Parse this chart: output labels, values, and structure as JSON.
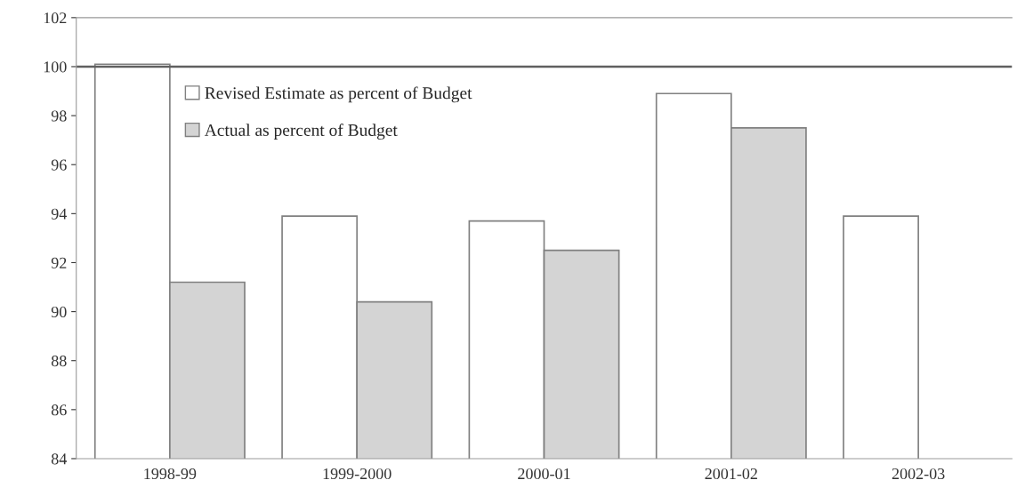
{
  "chart_data": {
    "type": "bar",
    "categories": [
      "1998-99",
      "1999-2000",
      "2000-01",
      "2001-02",
      "2002-03"
    ],
    "series": [
      {
        "name": "Revised Estimate as percent of Budget",
        "color": "#ffffff",
        "values": [
          100.1,
          93.9,
          93.7,
          98.9,
          93.9
        ]
      },
      {
        "name": "Actual as percent of Budget",
        "color": "#d4d4d4",
        "values": [
          91.2,
          90.4,
          92.5,
          97.5,
          null
        ]
      }
    ],
    "ylim": [
      84,
      102
    ],
    "yticks": [
      84,
      86,
      88,
      90,
      92,
      94,
      96,
      98,
      100,
      102
    ],
    "ref_lines": [
      {
        "axis": "y",
        "value": 100,
        "color": "#606060"
      }
    ],
    "grid": false,
    "legend": "top left"
  }
}
